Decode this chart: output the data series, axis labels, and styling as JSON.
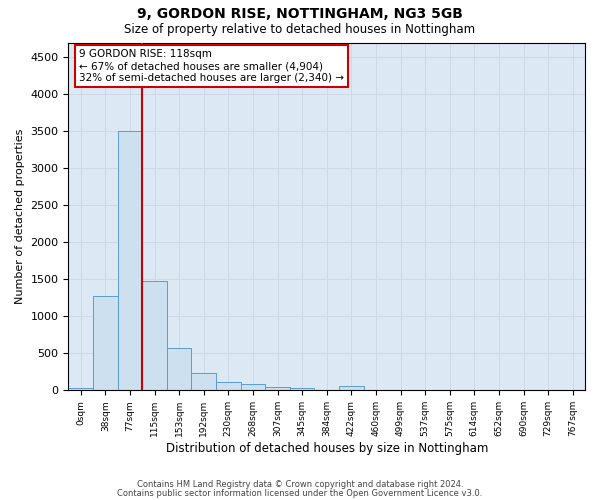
{
  "title": "9, GORDON RISE, NOTTINGHAM, NG3 5GB",
  "subtitle": "Size of property relative to detached houses in Nottingham",
  "xlabel": "Distribution of detached houses by size in Nottingham",
  "ylabel": "Number of detached properties",
  "bin_labels": [
    "0sqm",
    "38sqm",
    "77sqm",
    "115sqm",
    "153sqm",
    "192sqm",
    "230sqm",
    "268sqm",
    "307sqm",
    "345sqm",
    "384sqm",
    "422sqm",
    "460sqm",
    "499sqm",
    "537sqm",
    "575sqm",
    "614sqm",
    "652sqm",
    "690sqm",
    "729sqm",
    "767sqm"
  ],
  "bar_values": [
    30,
    1270,
    3500,
    1480,
    570,
    240,
    115,
    85,
    50,
    35,
    0,
    55,
    0,
    0,
    0,
    0,
    0,
    0,
    0,
    0,
    0
  ],
  "bar_color": "#cce0f0",
  "bar_edge_color": "#5b9bd5",
  "grid_color": "#d0d8e8",
  "background_color": "#dde8f5",
  "red_line_x": 3,
  "annotation_text": "9 GORDON RISE: 118sqm\n← 67% of detached houses are smaller (4,904)\n32% of semi-detached houses are larger (2,340) →",
  "annotation_box_color": "#ffffff",
  "annotation_box_edge": "#cc0000",
  "red_line_color": "#cc0000",
  "ylim": [
    0,
    4700
  ],
  "yticks": [
    0,
    500,
    1000,
    1500,
    2000,
    2500,
    3000,
    3500,
    4000,
    4500
  ],
  "footer_line1": "Contains HM Land Registry data © Crown copyright and database right 2024.",
  "footer_line2": "Contains public sector information licensed under the Open Government Licence v3.0."
}
